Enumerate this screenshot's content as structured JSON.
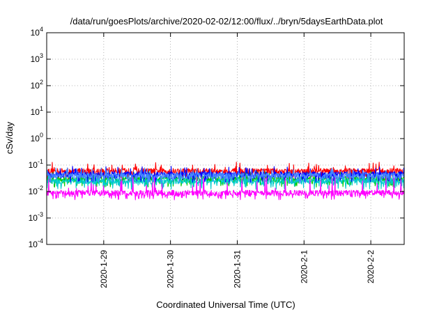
{
  "chart_data": {
    "type": "line",
    "title": "/data/run/goesPlots/archive/2020-02-02/12:00/flux/../bryn/5daysEarthData.plot",
    "xlabel": "Coordinated Universal Time (UTC)",
    "ylabel": "cSv/day",
    "yscale": "log",
    "ylim": [
      0.0001,
      10000
    ],
    "y_ticks": [
      {
        "base": "10",
        "exp": "-4",
        "value": 0.0001
      },
      {
        "base": "10",
        "exp": "-3",
        "value": 0.001
      },
      {
        "base": "10",
        "exp": "-2",
        "value": 0.01
      },
      {
        "base": "10",
        "exp": "-1",
        "value": 0.1
      },
      {
        "base": "10",
        "exp": "0",
        "value": 1
      },
      {
        "base": "10",
        "exp": "1",
        "value": 10
      },
      {
        "base": "10",
        "exp": "2",
        "value": 100
      },
      {
        "base": "10",
        "exp": "3",
        "value": 1000
      },
      {
        "base": "10",
        "exp": "4",
        "value": 10000
      }
    ],
    "xlim": [
      "2020-01-28T03:30",
      "2020-02-02T12:00"
    ],
    "x_ticks": [
      {
        "label": "2020-1-29",
        "value": "2020-01-29T00:00"
      },
      {
        "label": "2020-1-30",
        "value": "2020-01-30T00:00"
      },
      {
        "label": "2020-1-31",
        "value": "2020-01-31T00:00"
      },
      {
        "label": "2020-2-1",
        "value": "2020-02-01T00:00"
      },
      {
        "label": "2020-2-2",
        "value": "2020-02-02T00:00"
      }
    ],
    "grid": true,
    "legend": "none",
    "series": [
      {
        "color": "#ff0000",
        "base": 0.06,
        "low": 0.035,
        "spike_max": 0.13
      },
      {
        "color": "#00cc00",
        "base": 0.03,
        "low": 0.018,
        "spike_max": 0.06
      },
      {
        "color": "#00cccc",
        "base": 0.025,
        "low": 0.015,
        "spike_max": 0.05
      },
      {
        "color": "#0000ff",
        "base": 0.045,
        "low": 0.028,
        "spike_max": 0.09
      },
      {
        "color": "#4488ff",
        "base": 0.04,
        "low": 0.025,
        "spike_max": 0.08
      },
      {
        "color": "#ff00ff",
        "base": 0.009,
        "low": 0.006,
        "spike_max": 0.035
      }
    ]
  }
}
